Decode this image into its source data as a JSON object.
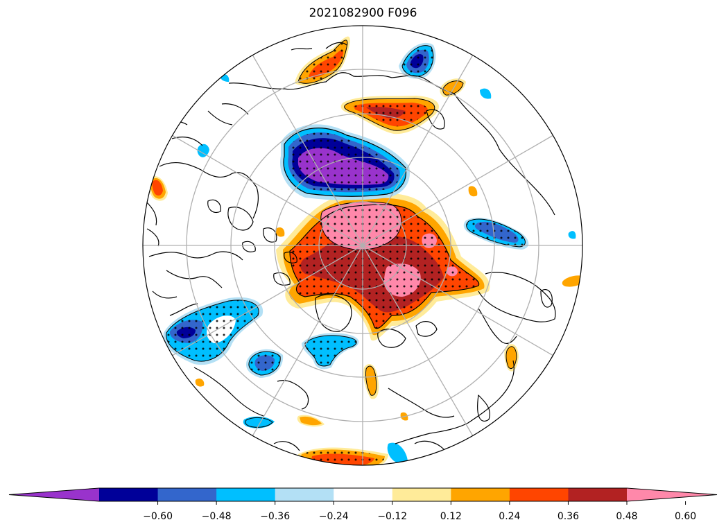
{
  "title": "2021082900 F096",
  "colorbar": {
    "colors": [
      "#9933cc",
      "#000099",
      "#3366cc",
      "#00bfff",
      "#b3e0f5",
      "#ffffff",
      "#ffeb99",
      "#ffa500",
      "#ff4500",
      "#b22222",
      "#ff88aa"
    ],
    "tick_labels": [
      "−0.60",
      "−0.48",
      "−0.36",
      "−0.24",
      "−0.12",
      "0.12",
      "0.24",
      "0.36",
      "0.48",
      "0.60"
    ],
    "extend": "both"
  },
  "map": {
    "projection": "north-polar-stereographic",
    "graticule": true,
    "stippling": "dots where significant"
  }
}
